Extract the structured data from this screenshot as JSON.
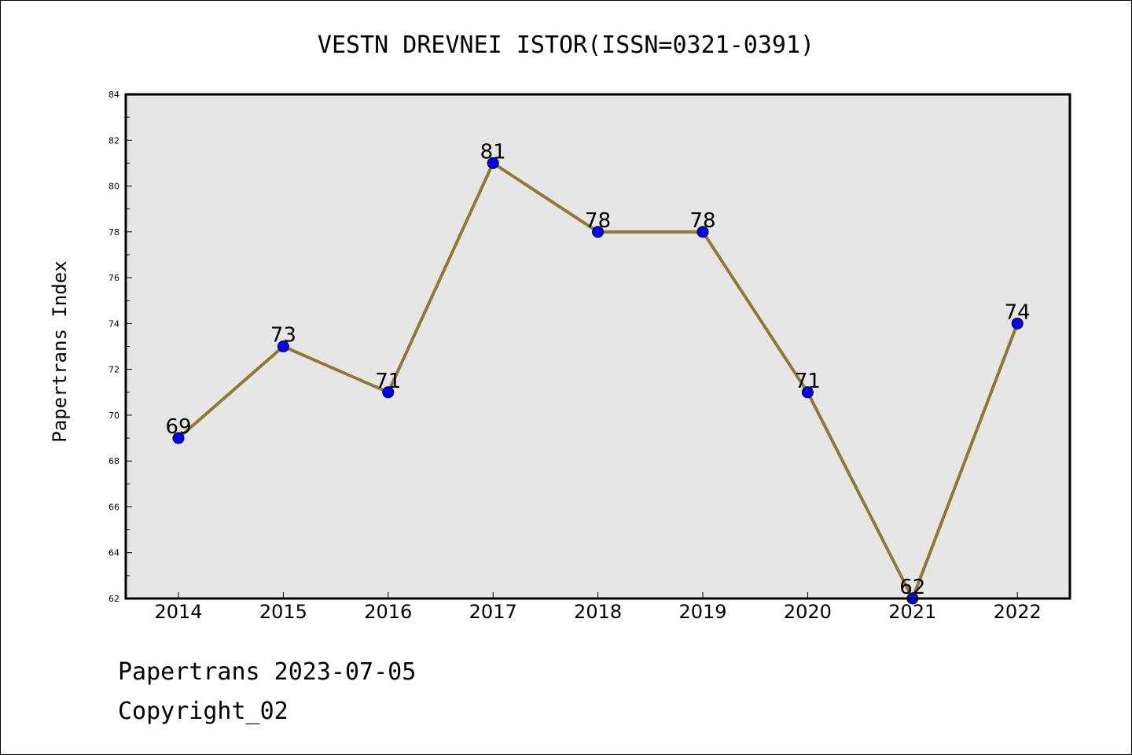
{
  "chart_data": {
    "type": "line",
    "title": "VESTN DREVNEI ISTOR(ISSN=0321-0391)",
    "ylabel": "Papertrans Index",
    "xlabel": "",
    "x": [
      "2014",
      "2015",
      "2016",
      "2017",
      "2018",
      "2019",
      "2020",
      "2021",
      "2022"
    ],
    "series": [
      {
        "values": [
          69,
          73,
          71,
          81,
          78,
          78,
          71,
          62,
          74
        ]
      }
    ],
    "data_labels": [
      "69",
      "73",
      "71",
      "81",
      "78",
      "78",
      "71",
      "62",
      "74"
    ],
    "ylim": [
      62,
      84
    ],
    "yticks": [
      "62",
      "64",
      "66",
      "68",
      "70",
      "72",
      "74",
      "76",
      "78",
      "80",
      "82",
      "84"
    ],
    "grid": false,
    "legend": "none",
    "colors": {
      "line": "#8c7a36",
      "marker": "#0000ff",
      "plot_background": "#e6e6e6",
      "axes_border": "#000000"
    }
  },
  "footer": {
    "line1": "Papertrans 2023-07-05",
    "line2": "Copyright_02"
  }
}
